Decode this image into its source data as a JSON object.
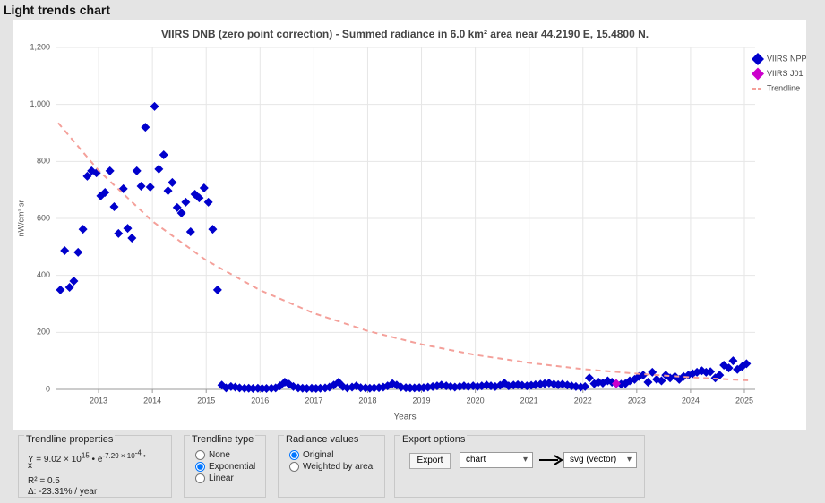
{
  "header": {
    "title": "Light trends chart"
  },
  "chart_data": {
    "type": "scatter",
    "title": "VIIRS DNB (zero point correction) - Summed radiance in 6.0 km² area near 44.2190 E, 15.4800 N.",
    "xlabel": "Years",
    "ylabel": "nW/cm² sr",
    "xlim": [
      2012.2,
      2025.2
    ],
    "ylim": [
      0,
      1200
    ],
    "xticks": [
      2013,
      2014,
      2015,
      2016,
      2017,
      2018,
      2019,
      2020,
      2021,
      2022,
      2023,
      2024,
      2025
    ],
    "yticks": [
      0,
      200,
      400,
      600,
      800,
      {
        "value": 1000,
        "label": "1,000"
      },
      {
        "value": 1200,
        "label": "1,200"
      }
    ],
    "grid": true,
    "legend": "top-right",
    "series": [
      {
        "name": "VIIRS NPP",
        "color": "#0000cc",
        "marker": "diamond",
        "x": [
          2012.29,
          2012.37,
          2012.46,
          2012.54,
          2012.62,
          2012.71,
          2012.79,
          2012.87,
          2012.96,
          2013.04,
          2013.12,
          2013.21,
          2013.29,
          2013.37,
          2013.46,
          2013.54,
          2013.62,
          2013.71,
          2013.79,
          2013.87,
          2013.96,
          2014.04,
          2014.12,
          2014.21,
          2014.29,
          2014.37,
          2014.46,
          2014.54,
          2014.62,
          2014.71,
          2014.79,
          2014.87,
          2014.96,
          2015.04,
          2015.12,
          2015.21,
          2015.29,
          2015.37,
          2015.46,
          2015.54,
          2015.62,
          2015.71,
          2015.79,
          2015.87,
          2015.96,
          2016.04,
          2016.12,
          2016.21,
          2016.29,
          2016.37,
          2016.46,
          2016.54,
          2016.62,
          2016.71,
          2016.79,
          2016.87,
          2016.96,
          2017.04,
          2017.12,
          2017.21,
          2017.29,
          2017.37,
          2017.46,
          2017.54,
          2017.62,
          2017.71,
          2017.79,
          2017.87,
          2017.96,
          2018.04,
          2018.12,
          2018.21,
          2018.29,
          2018.37,
          2018.46,
          2018.54,
          2018.62,
          2018.71,
          2018.79,
          2018.87,
          2018.96,
          2019.04,
          2019.12,
          2019.21,
          2019.29,
          2019.37,
          2019.46,
          2019.54,
          2019.62,
          2019.71,
          2019.79,
          2019.87,
          2019.96,
          2020.04,
          2020.12,
          2020.21,
          2020.29,
          2020.37,
          2020.46,
          2020.54,
          2020.62,
          2020.71,
          2020.79,
          2020.87,
          2020.96,
          2021.04,
          2021.12,
          2021.21,
          2021.29,
          2021.37,
          2021.46,
          2021.54,
          2021.62,
          2021.71,
          2021.79,
          2021.87,
          2021.96,
          2022.04,
          2022.12,
          2022.21,
          2022.29,
          2022.37,
          2022.46,
          2022.54,
          2022.62,
          2022.71,
          2022.79,
          2022.87,
          2022.96,
          2023.04,
          2023.12,
          2023.21,
          2023.29,
          2023.37,
          2023.46,
          2023.54,
          2023.62,
          2023.71,
          2023.79,
          2023.87,
          2023.96,
          2024.04,
          2024.12,
          2024.21,
          2024.29,
          2024.37,
          2024.46,
          2024.54,
          2024.62,
          2024.71,
          2024.79,
          2024.87,
          2024.96,
          2025.04
        ],
        "values": [
          349,
          487,
          358,
          380,
          481,
          562,
          748,
          767,
          760,
          679,
          691,
          767,
          641,
          547,
          704,
          565,
          531,
          767,
          713,
          920,
          710,
          993,
          773,
          823,
          697,
          726,
          638,
          619,
          657,
          553,
          685,
          672,
          707,
          657,
          562,
          349,
          15,
          5,
          10,
          8,
          5,
          4,
          4,
          3,
          4,
          3,
          3,
          4,
          5,
          12,
          25,
          18,
          10,
          5,
          4,
          3,
          4,
          3,
          4,
          5,
          8,
          15,
          25,
          10,
          5,
          8,
          12,
          6,
          5,
          4,
          5,
          6,
          8,
          12,
          20,
          15,
          8,
          6,
          5,
          5,
          6,
          6,
          8,
          10,
          12,
          15,
          12,
          10,
          8,
          10,
          12,
          10,
          12,
          10,
          12,
          15,
          12,
          10,
          14,
          22,
          12,
          15,
          16,
          14,
          12,
          14,
          16,
          18,
          20,
          22,
          18,
          16,
          18,
          15,
          12,
          10,
          8,
          10,
          40,
          20,
          25,
          22,
          30,
          25,
          20,
          18,
          20,
          30,
          35,
          45,
          50,
          25,
          60,
          35,
          30,
          50,
          40,
          45,
          35,
          45,
          50,
          55,
          60,
          65,
          60,
          62,
          40,
          50,
          85,
          75,
          100,
          70,
          80,
          90
        ]
      },
      {
        "name": "VIIRS J01",
        "color": "#cc00cc",
        "marker": "diamond",
        "x": [
          2022.62
        ],
        "values": [
          20
        ]
      },
      {
        "name": "Trendline",
        "color": "#f4a09a",
        "marker": "dashed-line",
        "x": [
          2012.25,
          2013,
          2014,
          2015,
          2016,
          2017,
          2018,
          2019,
          2020,
          2021,
          2022,
          2023,
          2024,
          2025,
          2025.15
        ],
        "values": [
          935,
          768,
          590,
          453,
          348,
          267,
          205,
          158,
          121,
          93,
          71,
          55,
          42,
          32,
          31
        ]
      }
    ]
  },
  "controls": {
    "trendline_properties": {
      "title": "Trendline properties",
      "formula": [
        "Y = 9.02 × 10",
        "15",
        " • e",
        "-7.29 × 10",
        "-4",
        " •",
        "x"
      ],
      "r2": "R² = 0.5",
      "delta": "Δ: -23.31% / year"
    },
    "trendline_type": {
      "title": "Trendline type",
      "options": [
        "None",
        "Exponential",
        "Linear"
      ],
      "selected": 1
    },
    "radiance_values": {
      "title": "Radiance values",
      "options": [
        "Original",
        "Weighted by area"
      ],
      "selected": 0
    },
    "export_options": {
      "title": "Export options",
      "button": "Export",
      "source": "chart",
      "target": "svg (vector)"
    }
  }
}
